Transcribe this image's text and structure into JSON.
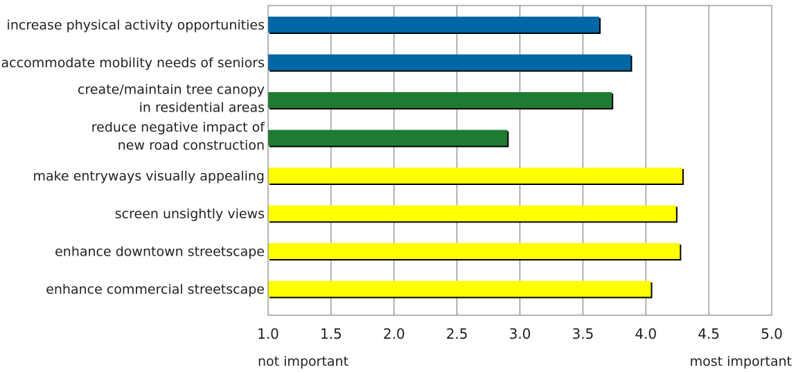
{
  "chart_data": {
    "type": "bar",
    "orientation": "horizontal",
    "categories": [
      [
        "increase physical activity opportunities"
      ],
      [
        "accommodate mobility needs of seniors"
      ],
      [
        "create/maintain tree canopy",
        "in residential areas"
      ],
      [
        "reduce negative impact of",
        "new road construction"
      ],
      [
        "make entryways visually appealing"
      ],
      [
        "screen unsightly views"
      ],
      [
        "enhance downtown streetscape"
      ],
      [
        "enhance commercial streetscape"
      ]
    ],
    "values": [
      3.63,
      3.88,
      3.73,
      2.9,
      4.29,
      4.24,
      4.27,
      4.04
    ],
    "bar_colors": [
      "#0067a5",
      "#0067a5",
      "#1f7a32",
      "#1f7a32",
      "#ffff00",
      "#ffff00",
      "#ffff00",
      "#ffff00"
    ],
    "xlim": [
      1.0,
      5.0
    ],
    "xticks": [
      "1.0",
      "1.5",
      "2.0",
      "2.5",
      "3.0",
      "3.5",
      "4.0",
      "4.5",
      "5.0"
    ],
    "gridlines": [
      1.5,
      2.0,
      2.5,
      3.0,
      3.5,
      4.0,
      4.5
    ],
    "scale_low_label": "not important",
    "scale_high_label": "most important",
    "title": "",
    "xlabel": "",
    "ylabel": ""
  }
}
